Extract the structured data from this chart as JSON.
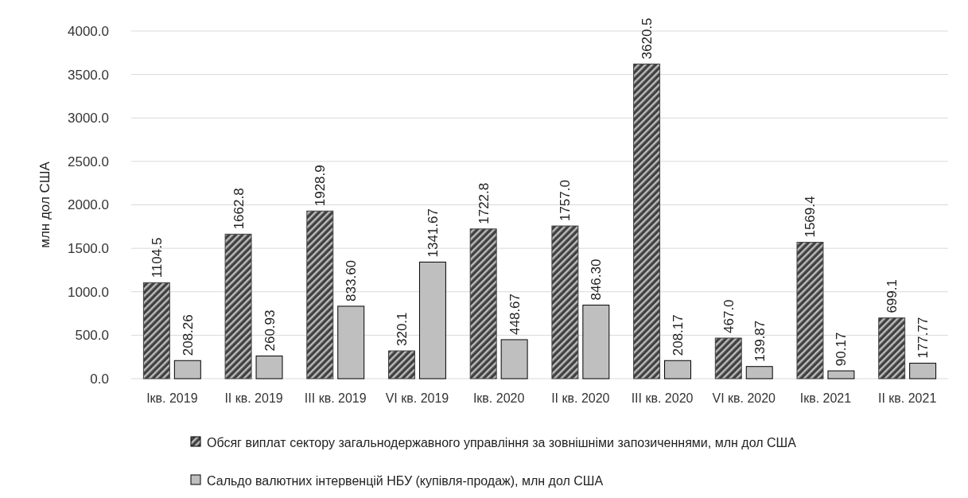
{
  "chart_data": {
    "type": "bar",
    "ylabel": "млн дол США",
    "categories": [
      "Ікв. 2019",
      "ІІ кв. 2019",
      "ІІІ кв. 2019",
      "VІ кв. 2019",
      "Ікв. 2020",
      "ІІ кв. 2020",
      "ІІІ кв. 2020",
      "VІ кв. 2020",
      "Ікв. 2021",
      "ІІ кв. 2021"
    ],
    "series": [
      {
        "name": "Обсяг виплат сектору загальнодержавного управління за зовнішніми запозиченнями, млн дол США",
        "color": "#404040",
        "values": [
          1104.5,
          1662.8,
          1928.9,
          320.1,
          1722.8,
          1757.0,
          3620.5,
          467.0,
          1569.4,
          699.1
        ],
        "value_labels": [
          "1104.5",
          "1662.8",
          "1928.9",
          "320.1",
          "1722.8",
          "1757.0",
          "3620.5",
          "467.0",
          "1569.4",
          "699.1"
        ]
      },
      {
        "name": "Сальдо валютних інтервенцій НБУ (купівля-продаж), млн дол США",
        "color": "#bfbfbf",
        "values": [
          208.26,
          260.93,
          833.6,
          1341.67,
          448.67,
          846.3,
          208.17,
          139.87,
          90.17,
          177.77
        ],
        "value_labels": [
          "208.26",
          "260.93",
          "833.60",
          "1341.67",
          "448.67",
          "846.30",
          "208.17",
          "139.87",
          "90.17",
          "177.77"
        ]
      }
    ],
    "ylim": [
      0,
      4000
    ],
    "yticks": [
      {
        "value": 0,
        "label": "0.0"
      },
      {
        "value": 500,
        "label": "500.0"
      },
      {
        "value": 1000,
        "label": "1000.0"
      },
      {
        "value": 1500,
        "label": "1500.0"
      },
      {
        "value": 2000,
        "label": "2000.0"
      },
      {
        "value": 2500,
        "label": "2500.0"
      },
      {
        "value": 3000,
        "label": "3000.0"
      },
      {
        "value": 3500,
        "label": "3500.0"
      },
      {
        "value": 4000,
        "label": "4000.0"
      }
    ],
    "grid": "y",
    "legend": "bottom"
  }
}
